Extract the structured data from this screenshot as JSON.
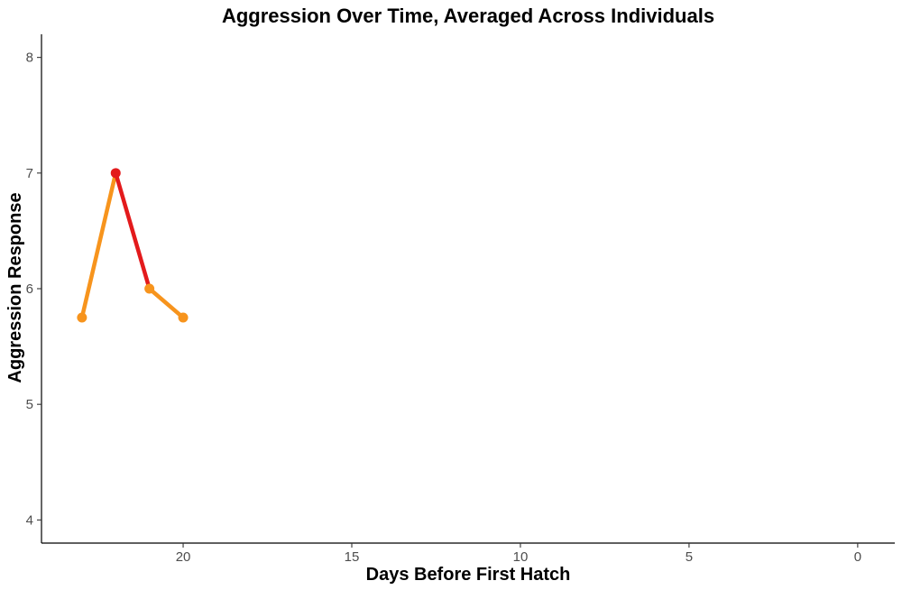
{
  "chart_data": {
    "type": "line",
    "title": "Aggression Over Time, Averaged Across Individuals",
    "xlabel": "Days Before First Hatch",
    "ylabel": "Aggression Response",
    "x_reversed": true,
    "xlim": [
      24.2,
      -1.1
    ],
    "ylim": [
      3.8,
      8.2
    ],
    "x_ticks": [
      20,
      15,
      10,
      5,
      0
    ],
    "y_ticks": [
      4,
      5,
      6,
      7,
      8
    ],
    "grid": false,
    "points": [
      {
        "x": 23,
        "y": 5.75,
        "color": "#f7941d"
      },
      {
        "x": 22,
        "y": 7.0,
        "color": "#e31a1c"
      },
      {
        "x": 21,
        "y": 6.0,
        "color": "#f7941d"
      },
      {
        "x": 20,
        "y": 5.75,
        "color": "#f7941d"
      }
    ],
    "segment_colors": [
      "#f7941d",
      "#e31a1c",
      "#f7941d"
    ]
  }
}
